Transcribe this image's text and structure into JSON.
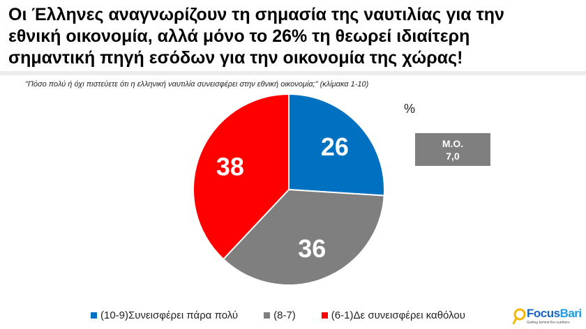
{
  "header": {
    "title_lines": [
      "Οι Έλληνες αναγνωρίζουν τη σημασία της ναυτιλίας για την",
      "εθνική οικονομία, αλλά μόνο το 26% τη θεωρεί ιδιαίτερη",
      "σημαντική πηγή εσόδων για την οικονομία της χώρας!"
    ],
    "question": "\"Πόσο πολύ ή όχι πιστεύετε ότι η ελληνική ναυτιλία συνεισφέρει στην εθνική οικονομία;\" (κλίμακα 1-10)"
  },
  "unit_label": "%",
  "mean_box": {
    "label": "Μ.Ο.",
    "value": "7,0"
  },
  "chart_data": {
    "type": "pie",
    "start": "12 o'clock, clockwise",
    "slices": [
      {
        "label": "(10-9)Συνεισφέρει πάρα πολύ",
        "value": 26,
        "data_label": "26",
        "color": "#0070c0"
      },
      {
        "label": "(8-7)",
        "value": 36,
        "data_label": "36",
        "color": "#7f7f7f"
      },
      {
        "label": "(6-1)Δε συνεισφέρει καθόλου",
        "value": 38,
        "data_label": "38",
        "color": "#ff0000"
      }
    ]
  },
  "logo": {
    "name_part1": "Focus",
    "name_part2": "Bari",
    "tagline": "Getting behind the numbers"
  },
  "colors": {
    "separator": "#ececec",
    "mean_box_bg": "#7f7f7f",
    "logo_blue": "#1565c0",
    "logo_light_blue": "#1e9be0",
    "logo_lens": "#f5b800"
  }
}
